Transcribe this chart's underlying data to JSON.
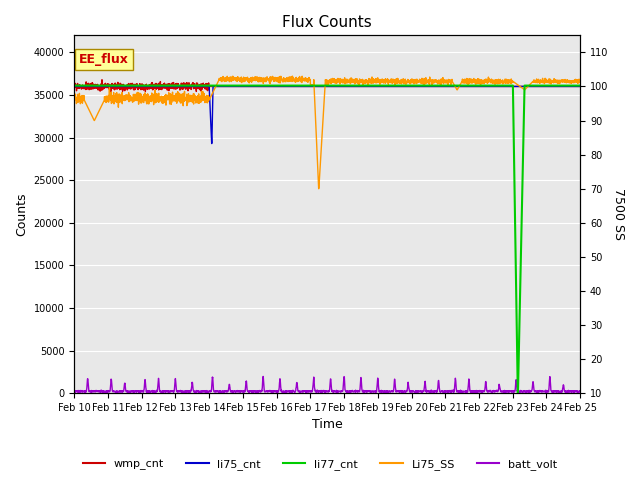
{
  "title": "Flux Counts",
  "xlabel": "Time",
  "ylabel_left": "Counts",
  "ylabel_right": "7500 SS",
  "annotation": "EE_flux",
  "x_tick_labels": [
    "Feb 10",
    "Feb 11",
    "Feb 12",
    "Feb 13",
    "Feb 14",
    "Feb 15",
    "Feb 16",
    "Feb 17",
    "Feb 18",
    "Feb 19",
    "Feb 20",
    "Feb 21",
    "Feb 22",
    "Feb 23",
    "Feb 24",
    "Feb 25"
  ],
  "ylim_left": [
    0,
    42000
  ],
  "ylim_right": [
    10,
    115
  ],
  "yticks_left": [
    0,
    5000,
    10000,
    15000,
    20000,
    25000,
    30000,
    35000,
    40000
  ],
  "yticks_right": [
    10,
    20,
    30,
    40,
    50,
    60,
    70,
    80,
    90,
    100,
    110
  ],
  "colors": {
    "wmp_cnt": "#cc0000",
    "li75_cnt": "#0000cc",
    "li77_cnt": "#00cc00",
    "Li75_SS": "#ff9900",
    "batt_volt": "#9900cc"
  },
  "background_color": "#e8e8e8",
  "fig_background": "#ffffff",
  "annotation_box_color": "#ffff99",
  "annotation_text_color": "#cc0000",
  "linewidth": 1.0,
  "title_fontsize": 11,
  "tick_fontsize": 7,
  "ylabel_fontsize": 9,
  "legend_fontsize": 8,
  "annotation_fontsize": 9
}
